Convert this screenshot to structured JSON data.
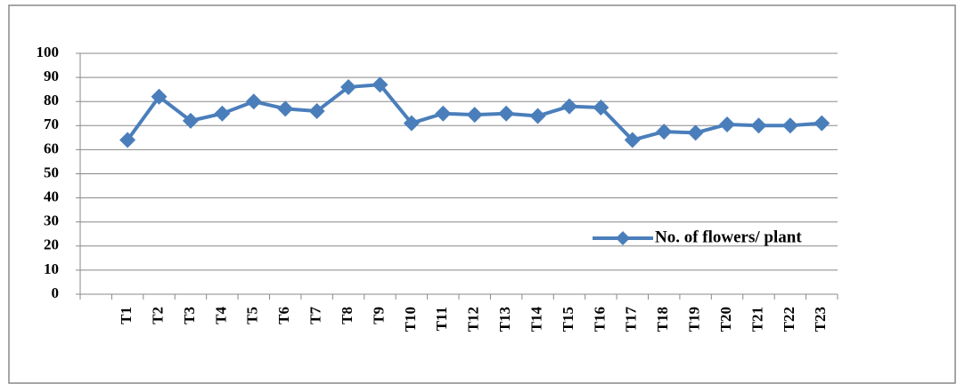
{
  "chart_data": {
    "type": "line",
    "categories": [
      null,
      "T1",
      "T2",
      "T3",
      "T4",
      "T5",
      "T6",
      "T7",
      "T8",
      "T9",
      "T10",
      "T11",
      "T12",
      "T13",
      "T14",
      "T15",
      "T16",
      "T17",
      "T18",
      "T19",
      "T20",
      "T21",
      "T22",
      "T23"
    ],
    "series": [
      {
        "name": "No. of flowers/ plant",
        "color": "#4a7ebb",
        "values": [
          null,
          64,
          82,
          72,
          75,
          80,
          77,
          76,
          86,
          87,
          71,
          75,
          74.5,
          75,
          74,
          78,
          77.5,
          64,
          67.5,
          67,
          70.5,
          70,
          70,
          71
        ]
      }
    ],
    "ylim": [
      0,
      100
    ],
    "yticks": [
      0,
      10,
      20,
      30,
      40,
      50,
      60,
      70,
      80,
      90,
      100
    ],
    "grid": true,
    "legend": "right"
  }
}
